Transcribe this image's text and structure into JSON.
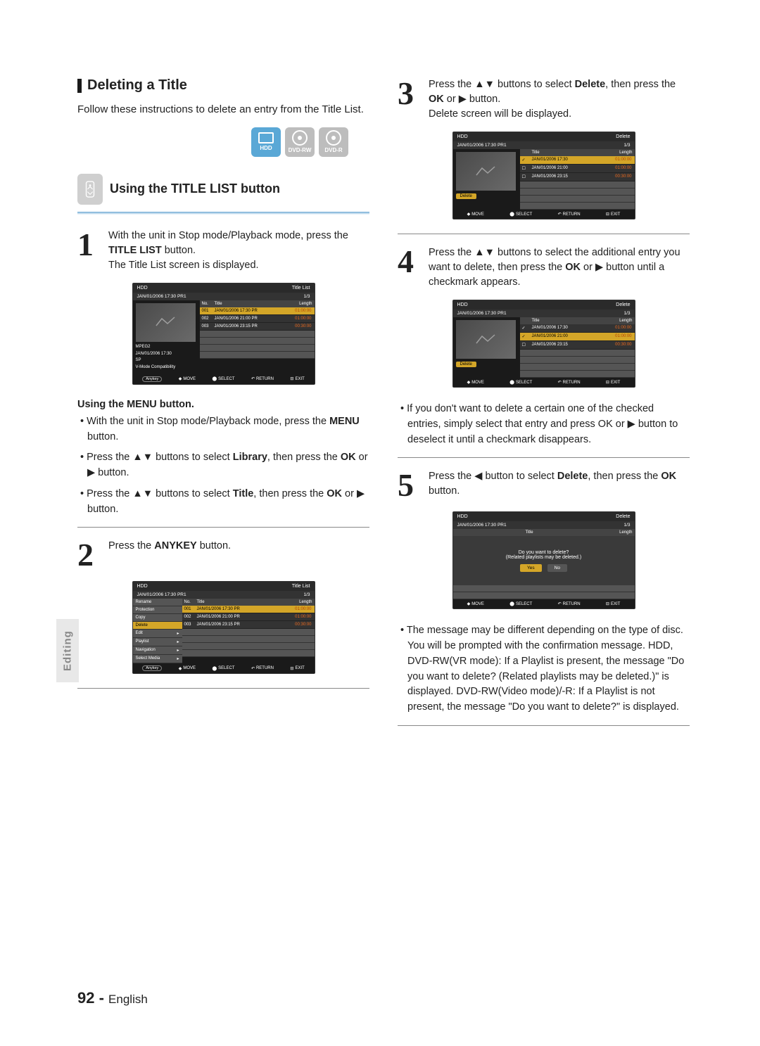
{
  "section": {
    "title": "Deleting a Title",
    "intro": "Follow these instructions to delete an entry from the Title List."
  },
  "media_icons": [
    {
      "label": "HDD",
      "active": true,
      "shape": "hdd"
    },
    {
      "label": "DVD-RW",
      "active": false,
      "shape": "disc"
    },
    {
      "label": "DVD-R",
      "active": false,
      "shape": "disc"
    }
  ],
  "subheading": "Using the TITLE LIST button",
  "steps_left": {
    "s1": {
      "num": "1",
      "line1a": "With the unit in Stop mode/Playback mode, press the ",
      "line1b": "TITLE LIST",
      "line1c": " button.",
      "line2": "The Title List screen is displayed."
    },
    "s2": {
      "num": "2",
      "line1a": "Press the ",
      "line1b": "ANYKEY",
      "line1c": " button."
    }
  },
  "menu_block": {
    "title": "Using the MENU button.",
    "b1a": "With the unit in Stop mode/Playback mode, press the ",
    "b1b": "MENU",
    "b1c": " button.",
    "b2a": "Press the ▲▼ buttons to select ",
    "b2b": "Library",
    "b2c": ", then press the ",
    "b2d": "OK",
    "b2e": " or ▶ button.",
    "b3a": "Press the ▲▼ buttons to select ",
    "b3b": "Title",
    "b3c": ", then press the ",
    "b3d": "OK",
    "b3e": " or ▶ button."
  },
  "steps_right": {
    "s3": {
      "num": "3",
      "t1": "Press the ▲▼ buttons to select ",
      "t2": "Delete",
      "t3": ", then press the ",
      "t4": "OK",
      "t5": " or ▶ button.",
      "t6": "Delete screen will be displayed."
    },
    "s4": {
      "num": "4",
      "t1": "Press the ▲▼ buttons to select the additional entry you want to delete, then press the ",
      "t2": "OK",
      "t3": " or ▶ button until a checkmark appears."
    },
    "s4_note": "If you don't want to delete a certain one of the checked entries, simply select that entry and press OK or ▶ button to deselect it until a checkmark disappears.",
    "s5": {
      "num": "5",
      "t1": "Press the ◀ button to select ",
      "t2": "Delete",
      "t3": ", then press the ",
      "t4": "OK",
      "t5": " button."
    },
    "s5_note": "The message may be different depending on the type of disc. You will be prompted with the confirmation message. HDD, DVD-RW(VR mode): If a Playlist is present, the message \"Do you want to delete? (Related playlists may be deleted.)\" is displayed. DVD-RW(Video mode)/-R: If a Playlist is not present, the message \"Do you want to delete?\" is displayed."
  },
  "screen_common": {
    "hdd": "HDD",
    "timestamp": "JAN/01/2006 17:30 PR1",
    "title_list": "Title List",
    "delete": "Delete",
    "counter": "1/3",
    "delete_btn": "Delete",
    "cols": {
      "no": "No.",
      "title": "Title",
      "length": "Length"
    },
    "footer": {
      "move": "MOVE",
      "select": "SELECT",
      "return": "RETURN",
      "exit": "EXIT",
      "anykey": "Anykey"
    },
    "info_lines": [
      "MPEG2",
      "JAN/01/2006 17:30",
      "SP",
      "V-Mode Compatibility"
    ]
  },
  "screen1_rows": [
    {
      "no": "001",
      "title": "JAN/01/2006 17:30 PR",
      "len": "01:00:00",
      "hl": true
    },
    {
      "no": "002",
      "title": "JAN/01/2006 21:00 PR",
      "len": "01:00:00",
      "hl": false
    },
    {
      "no": "003",
      "title": "JAN/01/2006 23:15 PR",
      "len": "00:30:00",
      "hl": false
    }
  ],
  "screen2_menu": [
    "Rename",
    "Protection",
    "Copy",
    "Delete",
    "Edit",
    "Playlist",
    "Navigation",
    "Select Media"
  ],
  "screen2_menu_hl": "Delete",
  "screen3_rows": [
    {
      "check": true,
      "title": "JAN/01/2006 17:30",
      "len": "01:00:00",
      "hl": true
    },
    {
      "check": false,
      "title": "JAN/01/2006 21:00",
      "len": "01:00:00",
      "hl": false
    },
    {
      "check": false,
      "title": "JAN/01/2006 23:15",
      "len": "00:30:00",
      "hl": false
    }
  ],
  "screen4_rows": [
    {
      "check": true,
      "title": "JAN/01/2006 17:30",
      "len": "01:00:00",
      "hl": false
    },
    {
      "check": true,
      "title": "JAN/01/2006 21:00",
      "len": "01:00:00",
      "hl": true
    },
    {
      "check": false,
      "title": "JAN/01/2006 23:15",
      "len": "00:30:00",
      "hl": false
    }
  ],
  "dialog": {
    "line1": "Do you want to delete?",
    "line2": "(Related playlists may be deleted.)",
    "yes": "Yes",
    "no": "No"
  },
  "side_tab": "Editing",
  "footer": {
    "page": "92",
    "dash": " - ",
    "lang": "English"
  },
  "colors": {
    "icon_active": "#5aa8d6",
    "icon_inactive": "#bdbdbd",
    "highlight": "#d4a628",
    "len_color": "#ec6a1f",
    "hr_top": "#6ea9d4"
  }
}
